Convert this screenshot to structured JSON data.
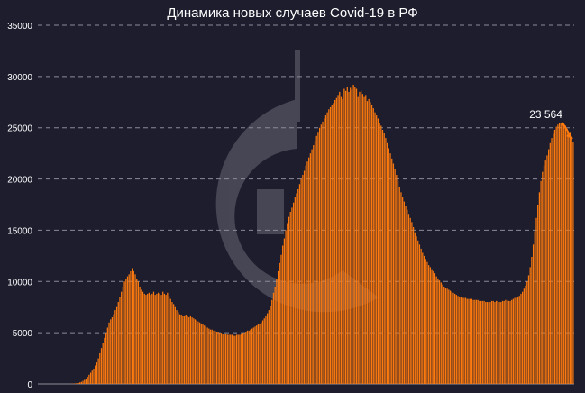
{
  "chart_data": {
    "type": "bar",
    "title": "Динамика новых случаев Covid-19 в РФ",
    "xlabel": "",
    "ylabel": "",
    "ylim": [
      0,
      35000
    ],
    "yticks": [
      0,
      5000,
      10000,
      15000,
      20000,
      25000,
      30000,
      35000
    ],
    "ytick_labels": [
      "0",
      "5000",
      "10000",
      "15000",
      "20000",
      "25000",
      "30000",
      "35000"
    ],
    "grid": true,
    "legend": "none",
    "bar_color": "#ff7a0e",
    "annotation": {
      "text": "23 564",
      "value": 23564,
      "target": "last"
    },
    "values_daily_profile": [
      0,
      0,
      0,
      0,
      0,
      0,
      0,
      0,
      0,
      0,
      0,
      0,
      0,
      0,
      0,
      0,
      0,
      0,
      0,
      0,
      0,
      10,
      20,
      30,
      50,
      70,
      100,
      150,
      200,
      300,
      400,
      500,
      700,
      900,
      1100,
      1300,
      1500,
      1800,
      2100,
      2500,
      3000,
      3500,
      4000,
      4500,
      5000,
      5500,
      6000,
      6300,
      6500,
      6800,
      7200,
      7500,
      8000,
      8500,
      9000,
      9500,
      10000,
      10200,
      10500,
      10700,
      11000,
      11300,
      11000,
      10700,
      10200,
      10000,
      9500,
      9200,
      9000,
      8800,
      8700,
      8800,
      8900,
      8700,
      8800,
      9000,
      8700,
      8800,
      8900,
      8800,
      8700,
      9000,
      8800,
      8700,
      8900,
      8600,
      8300,
      8000,
      7800,
      7500,
      7200,
      7000,
      6800,
      6700,
      6600,
      6600,
      6700,
      6600,
      6500,
      6600,
      6500,
      6400,
      6300,
      6200,
      6100,
      6000,
      5900,
      5800,
      5700,
      5600,
      5500,
      5400,
      5300,
      5300,
      5200,
      5200,
      5100,
      5100,
      5000,
      5000,
      4900,
      4900,
      4900,
      4800,
      4800,
      4800,
      4800,
      4700,
      4700,
      4800,
      4800,
      4800,
      4900,
      5000,
      5000,
      5100,
      5200,
      5200,
      5300,
      5400,
      5500,
      5600,
      5700,
      5800,
      5900,
      6000,
      6200,
      6400,
      6600,
      6900,
      7200,
      7600,
      8200,
      8900,
      9500,
      10200,
      11000,
      11800,
      12600,
      13500,
      14200,
      15000,
      15700,
      16300,
      16800,
      17200,
      17700,
      18200,
      18600,
      19000,
      19500,
      20000,
      20400,
      20800,
      21300,
      21700,
      22100,
      22500,
      22900,
      23300,
      23700,
      24200,
      24600,
      25000,
      25300,
      25600,
      25900,
      26200,
      26500,
      26800,
      27000,
      27200,
      27400,
      27700,
      27900,
      28200,
      28500,
      28000,
      27800,
      28800,
      28600,
      29000,
      28500,
      28900,
      28700,
      29200,
      29000,
      28800,
      28000,
      28500,
      28600,
      28300,
      28000,
      28200,
      27600,
      27800,
      27500,
      27200,
      26900,
      26500,
      26200,
      25900,
      25500,
      25200,
      24800,
      24500,
      24000,
      23500,
      23000,
      22500,
      22000,
      21500,
      21000,
      20400,
      19800,
      19200,
      18700,
      18200,
      17800,
      17400,
      17000,
      16600,
      16200,
      15800,
      15300,
      14800,
      14400,
      14000,
      13600,
      13200,
      12800,
      12500,
      12200,
      11900,
      11600,
      11400,
      11200,
      11000,
      10800,
      10500,
      10300,
      10100,
      9900,
      9700,
      9500,
      9400,
      9300,
      9200,
      9100,
      9000,
      8900,
      8800,
      8700,
      8600,
      8500,
      8500,
      8400,
      8400,
      8400,
      8300,
      8300,
      8300,
      8300,
      8200,
      8200,
      8200,
      8200,
      8100,
      8100,
      8100,
      8100,
      8000,
      8000,
      8000,
      8000,
      8100,
      8100,
      8000,
      8100,
      8100,
      8000,
      8000,
      8100,
      8100,
      8200,
      8200,
      8100,
      8100,
      8200,
      8300,
      8400,
      8400,
      8500,
      8600,
      8800,
      9000,
      9300,
      9600,
      10000,
      10600,
      11400,
      12400,
      13600,
      14900,
      16200,
      17500,
      18700,
      19800,
      20700,
      21300,
      21800,
      22300,
      22900,
      23500,
      24000,
      24400,
      24800,
      25100,
      25300,
      25500,
      25500,
      25400,
      25300,
      25200,
      24900,
      24600,
      24300,
      24000,
      23564
    ]
  }
}
